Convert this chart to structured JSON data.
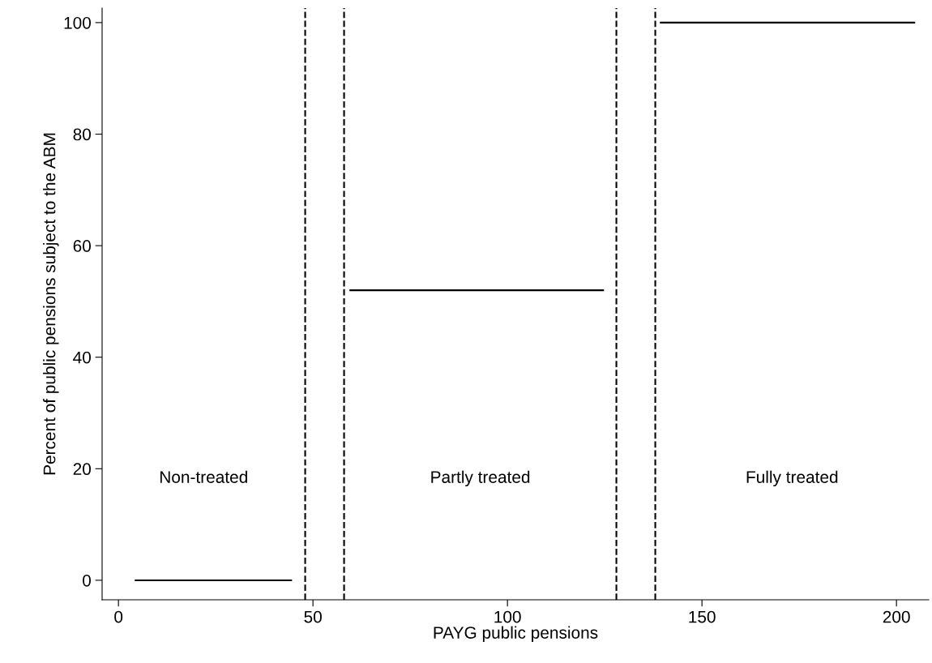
{
  "chart_data": {
    "type": "line",
    "xlabel": "PAYG public pensions",
    "ylabel": "Percent of public pensions subject to the ABM",
    "series": [
      {
        "color": "#000000",
        "x": [
          4.4,
          44.4
        ],
        "values": [
          0,
          0
        ]
      },
      {
        "color": "#000000",
        "x": [
          59.6,
          124.6
        ],
        "values": [
          52,
          52
        ]
      },
      {
        "color": "#000000",
        "x": [
          139.4,
          204.6
        ],
        "values": [
          100,
          100
        ]
      }
    ],
    "ref_lines": [
      {
        "axis": "x",
        "value": 48,
        "label": null,
        "color": "#000000",
        "line_style": "dashed"
      },
      {
        "axis": "x",
        "value": 58,
        "label": null,
        "color": "#000000",
        "line_style": "dashed"
      },
      {
        "axis": "x",
        "value": 128,
        "label": null,
        "color": "#000000",
        "line_style": "dashed"
      },
      {
        "axis": "x",
        "value": 138,
        "label": null,
        "color": "#000000",
        "line_style": "dashed"
      }
    ],
    "annotations": [
      "Non-treated",
      "Partly treated",
      "Fully treated"
    ],
    "xlim": [
      -4.2,
      208.3
    ],
    "ylim": [
      -3.5,
      102.6
    ],
    "xticks": [
      0,
      50,
      100,
      150,
      200
    ],
    "yticks": [
      0,
      20,
      40,
      60,
      80,
      100
    ],
    "grid": false,
    "legend": false,
    "marker": "none",
    "line_style": "solid"
  }
}
